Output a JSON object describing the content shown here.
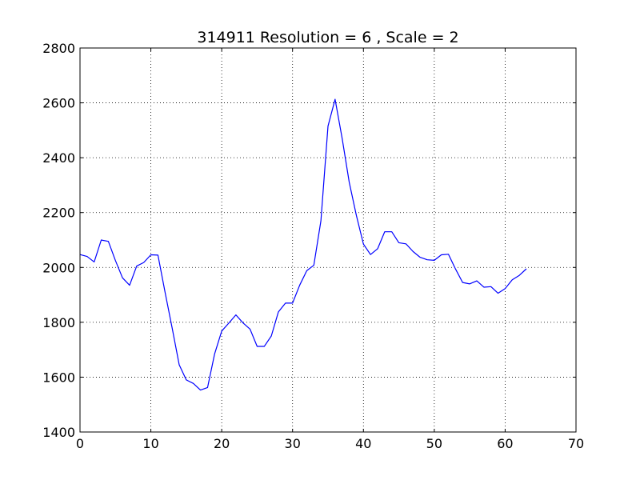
{
  "chart_data": {
    "type": "line",
    "title": "314911 Resolution = 6 , Scale = 2",
    "xlabel": "",
    "ylabel": "",
    "xlim": [
      0,
      70
    ],
    "ylim": [
      1400,
      2800
    ],
    "x_ticks": [
      0,
      10,
      20,
      30,
      40,
      50,
      60,
      70
    ],
    "y_ticks": [
      1400,
      1600,
      1800,
      2000,
      2200,
      2400,
      2600,
      2800
    ],
    "grid": true,
    "legend": "none",
    "series": [
      {
        "color": "#0000ff",
        "x": [
          0,
          1,
          2,
          3,
          4,
          5,
          6,
          7,
          8,
          9,
          10,
          11,
          12,
          13,
          14,
          15,
          16,
          17,
          18,
          19,
          20,
          21,
          22,
          23,
          24,
          25,
          26,
          27,
          28,
          29,
          30,
          31,
          32,
          33,
          34,
          35,
          36,
          37,
          38,
          39,
          40,
          41,
          42,
          43,
          44,
          45,
          46,
          47,
          48,
          49,
          50,
          51,
          52,
          53,
          54,
          55,
          56,
          57,
          58,
          59,
          60,
          61,
          62,
          63
        ],
        "y": [
          2047,
          2040,
          2020,
          2100,
          2095,
          2025,
          1962,
          1935,
          2005,
          2018,
          2046,
          2045,
          1910,
          1780,
          1645,
          1590,
          1577,
          1553,
          1562,
          1685,
          1768,
          1797,
          1827,
          1798,
          1775,
          1712,
          1712,
          1750,
          1838,
          1870,
          1870,
          1935,
          1988,
          2008,
          2170,
          2515,
          2613,
          2470,
          2310,
          2190,
          2085,
          2047,
          2068,
          2130,
          2130,
          2090,
          2086,
          2058,
          2037,
          2028,
          2026,
          2046,
          2048,
          1994,
          1945,
          1940,
          1951,
          1928,
          1930,
          1906,
          1923,
          1955,
          1971,
          1995
        ]
      }
    ]
  }
}
